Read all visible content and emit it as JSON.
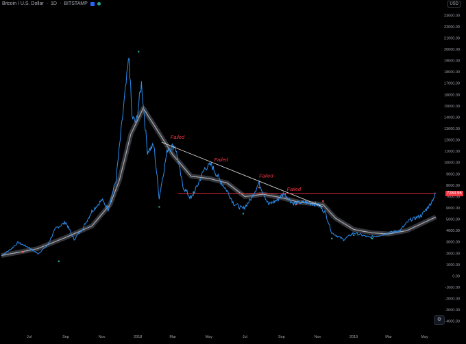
{
  "header": {
    "symbol": "Bitcoin / U.S. Dollar",
    "interval": "1D",
    "exchange": "BITSTAMP",
    "icons": [
      "close-square-icon",
      "status-dot-icon"
    ]
  },
  "currency_label": "USD",
  "current_price_label": "7284.96",
  "settings_icon": "settings-icon",
  "annotations": [
    "Failed",
    "Failed",
    "Failed",
    "Failed"
  ],
  "colors": {
    "background": "#000000",
    "price_line": "#2b8ff0",
    "moving_average": "#a9acb3",
    "ma_band": "#4a4c52",
    "trendline": "#d8d8d8",
    "support_line": "#f23645",
    "annotation": "#f23645",
    "marker_green": "#26a69a",
    "marker_red": "#ef5350",
    "axis_text": "#9ea2ab"
  },
  "chart_data": {
    "type": "line",
    "title": "",
    "xlabel": "",
    "ylabel": "",
    "ylim": [
      -4500,
      23500
    ],
    "y_ticks": [
      "23000.00",
      "22000.00",
      "21000.00",
      "20000.00",
      "19000.00",
      "18000.00",
      "17000.00",
      "16000.00",
      "15000.00",
      "14000.00",
      "13000.00",
      "12000.00",
      "11000.00",
      "10000.00",
      "9000.00",
      "8000.00",
      "7000.00",
      "6000.00",
      "5000.00",
      "4000.00",
      "3000.00",
      "2000.00",
      "1000.00",
      "0.00",
      "-1000.00",
      "-2000.00",
      "-3000.00",
      "-4000.00"
    ],
    "x_ticks": [
      "Jul",
      "Sep",
      "Nov",
      "2018",
      "Mar",
      "May",
      "Jul",
      "Sep",
      "Nov",
      "2019",
      "Mar",
      "May"
    ],
    "x_range": [
      "2017-05-15",
      "2019-05-20"
    ],
    "grid": false,
    "series": [
      {
        "values_daily_close": [
          [
            "2017-05-15",
            1800
          ],
          [
            "2017-06-01",
            2400
          ],
          [
            "2017-06-12",
            2950
          ],
          [
            "2017-07-01",
            2500
          ],
          [
            "2017-07-16",
            1950
          ],
          [
            "2017-08-01",
            2700
          ],
          [
            "2017-08-15",
            4200
          ],
          [
            "2017-09-01",
            4750
          ],
          [
            "2017-09-15",
            3200
          ],
          [
            "2017-10-01",
            4300
          ],
          [
            "2017-10-15",
            5700
          ],
          [
            "2017-11-01",
            6700
          ],
          [
            "2017-11-12",
            5900
          ],
          [
            "2017-11-25",
            8500
          ],
          [
            "2017-12-07",
            14500
          ],
          [
            "2017-12-17",
            19300
          ],
          [
            "2017-12-22",
            14000
          ],
          [
            "2017-12-29",
            13500
          ],
          [
            "2018-01-07",
            17000
          ],
          [
            "2018-01-17",
            11000
          ],
          [
            "2018-01-28",
            11500
          ],
          [
            "2018-02-06",
            6900
          ],
          [
            "2018-02-20",
            11200
          ],
          [
            "2018-03-05",
            11500
          ],
          [
            "2018-03-18",
            7900
          ],
          [
            "2018-04-01",
            6800
          ],
          [
            "2018-04-12",
            8000
          ],
          [
            "2018-04-24",
            9500
          ],
          [
            "2018-05-05",
            9800
          ],
          [
            "2018-05-20",
            8400
          ],
          [
            "2018-06-01",
            7500
          ],
          [
            "2018-06-12",
            6400
          ],
          [
            "2018-06-28",
            5900
          ],
          [
            "2018-07-10",
            6700
          ],
          [
            "2018-07-25",
            8200
          ],
          [
            "2018-08-10",
            6300
          ],
          [
            "2018-08-25",
            6700
          ],
          [
            "2018-09-05",
            7300
          ],
          [
            "2018-09-20",
            6400
          ],
          [
            "2018-10-10",
            6500
          ],
          [
            "2018-11-01",
            6300
          ],
          [
            "2018-11-14",
            5600
          ],
          [
            "2018-11-25",
            3800
          ],
          [
            "2018-12-15",
            3200
          ],
          [
            "2019-01-01",
            3800
          ],
          [
            "2019-01-28",
            3400
          ],
          [
            "2019-02-15",
            3600
          ],
          [
            "2019-03-01",
            3800
          ],
          [
            "2019-03-20",
            4000
          ],
          [
            "2019-04-05",
            4900
          ],
          [
            "2019-04-25",
            5300
          ],
          [
            "2019-05-10",
            6300
          ],
          [
            "2019-05-20",
            7280
          ]
        ],
        "values_moving_average": [
          [
            "2017-05-15",
            1800
          ],
          [
            "2017-07-15",
            2400
          ],
          [
            "2017-09-01",
            3400
          ],
          [
            "2017-10-15",
            4400
          ],
          [
            "2017-11-15",
            6300
          ],
          [
            "2017-12-01",
            8500
          ],
          [
            "2017-12-20",
            12500
          ],
          [
            "2018-01-10",
            14800
          ],
          [
            "2018-02-01",
            13000
          ],
          [
            "2018-03-01",
            10700
          ],
          [
            "2018-04-01",
            8800
          ],
          [
            "2018-05-01",
            8600
          ],
          [
            "2018-06-01",
            8200
          ],
          [
            "2018-07-01",
            7000
          ],
          [
            "2018-08-01",
            7200
          ],
          [
            "2018-09-01",
            6900
          ],
          [
            "2018-10-01",
            6500
          ],
          [
            "2018-11-10",
            6300
          ],
          [
            "2018-12-01",
            5100
          ],
          [
            "2019-01-01",
            4100
          ],
          [
            "2019-02-01",
            3800
          ],
          [
            "2019-03-01",
            3700
          ],
          [
            "2019-04-01",
            4000
          ],
          [
            "2019-05-20",
            5200
          ]
        ]
      }
    ],
    "trendline": [
      [
        "2018-02-10",
        11800
      ],
      [
        "2018-11-10",
        6100
      ]
    ],
    "support_level": 7284.96,
    "support_start": "2018-03-10",
    "failed_labels_at": [
      [
        "2018-02-25",
        12100
      ],
      [
        "2018-05-10",
        10100
      ],
      [
        "2018-07-25",
        8700
      ],
      [
        "2018-09-10",
        7500
      ]
    ],
    "markers": [
      [
        "2017-06-20",
        2100,
        "red"
      ],
      [
        "2017-08-20",
        1300,
        "green"
      ],
      [
        "2018-02-06",
        6100,
        "green"
      ],
      [
        "2018-01-02",
        19800,
        "green"
      ],
      [
        "2018-04-05",
        7400,
        "green"
      ],
      [
        "2018-06-28",
        5500,
        "green"
      ],
      [
        "2018-07-25",
        7800,
        "red"
      ],
      [
        "2018-09-25",
        6300,
        "red"
      ],
      [
        "2018-11-10",
        6600,
        "red"
      ],
      [
        "2018-11-25",
        3300,
        "green"
      ],
      [
        "2019-01-01",
        3600,
        "green"
      ],
      [
        "2019-02-01",
        3300,
        "green"
      ]
    ]
  }
}
